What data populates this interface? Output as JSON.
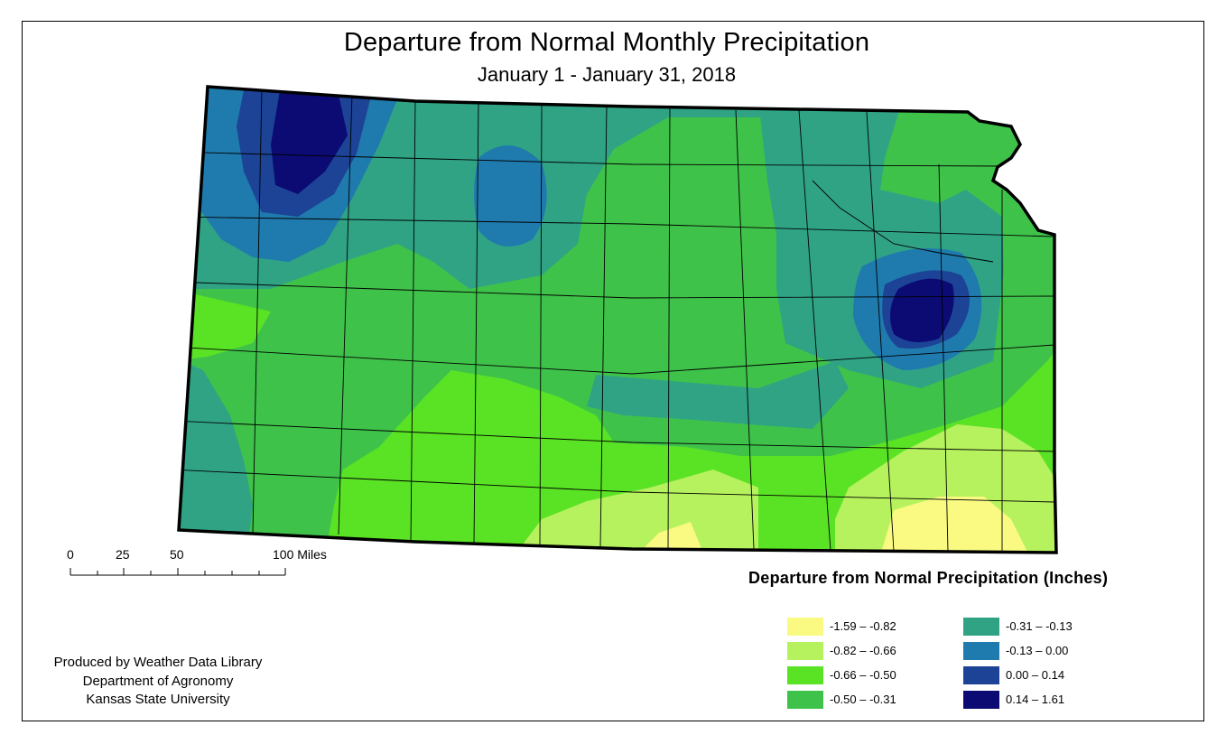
{
  "title": "Departure from Normal Monthly Precipitation",
  "subtitle": "January 1 - January 31, 2018",
  "scale_bar": {
    "labels": [
      "0",
      "25",
      "50",
      "100 Miles"
    ]
  },
  "legend": {
    "title": "Departure from Normal Precipitation (Inches)",
    "items": [
      {
        "label": "-1.59 – -0.82",
        "color": "#fafa82"
      },
      {
        "label": "-0.82 – -0.66",
        "color": "#b5f25e"
      },
      {
        "label": "-0.66 – -0.50",
        "color": "#5ae324"
      },
      {
        "label": "-0.50 – -0.31",
        "color": "#3fc24a"
      },
      {
        "label": "-0.31 – -0.13",
        "color": "#30a385"
      },
      {
        "label": "-0.13 – 0.00",
        "color": "#1f7aad"
      },
      {
        "label": "0.00 – 0.14",
        "color": "#1c4396"
      },
      {
        "label": "0.14 – 1.61",
        "color": "#0b0b73"
      }
    ]
  },
  "credits": {
    "line1": "Produced by Weather Data Library",
    "line2": "Department of Agronomy",
    "line3": "Kansas State University"
  }
}
